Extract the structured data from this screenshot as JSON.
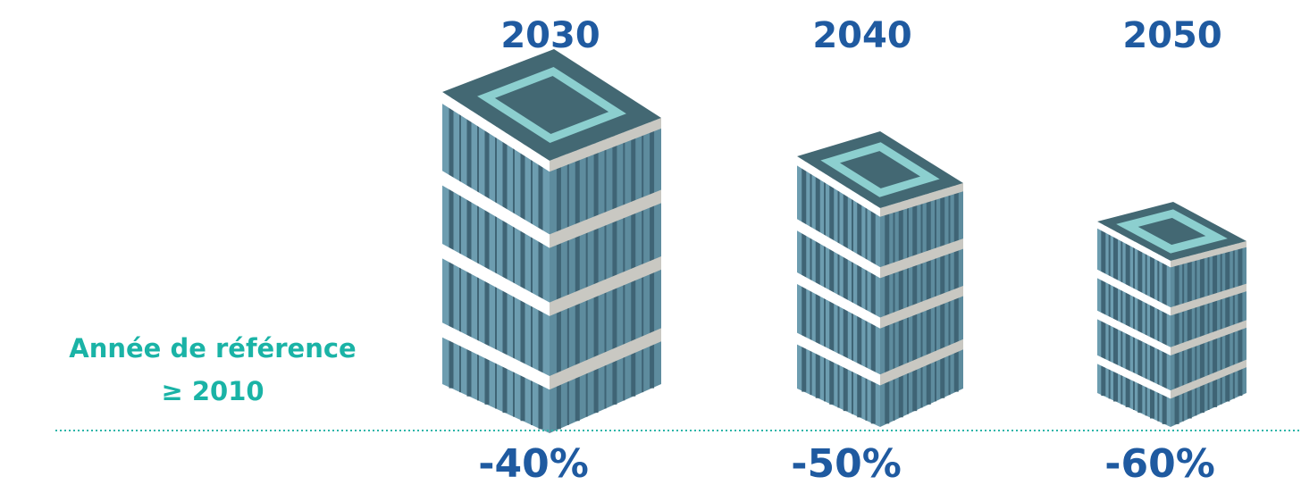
{
  "reference": {
    "line1": "Année de référence",
    "line2": "≥ 2010"
  },
  "steps": [
    {
      "year": "2030",
      "reduction": "-40%"
    },
    {
      "year": "2040",
      "reduction": "-50%"
    },
    {
      "year": "2050",
      "reduction": "-60%"
    }
  ]
}
